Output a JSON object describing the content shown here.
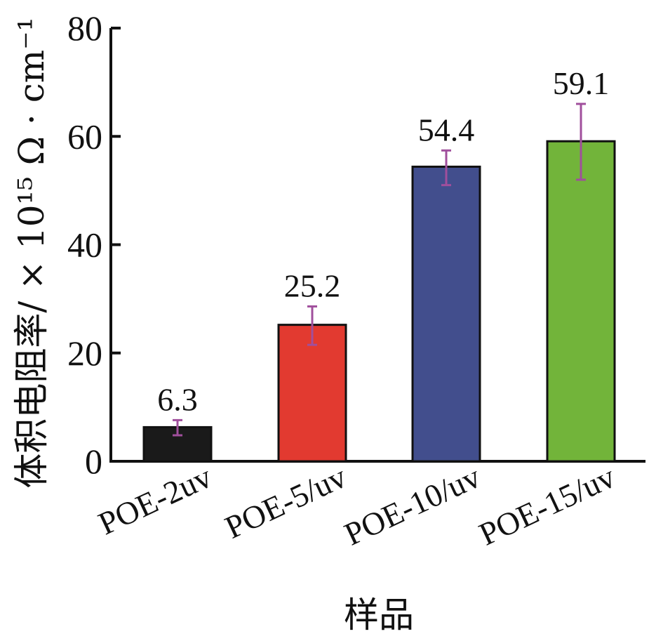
{
  "chart_data": {
    "type": "bar",
    "categories": [
      "POE-2uv",
      "POE-5/uv",
      "POE-10/uv",
      "POE-15/uv"
    ],
    "values": [
      6.3,
      25.2,
      54.4,
      59.1
    ],
    "value_labels": [
      "6.3",
      "25.2",
      "54.4",
      "59.1"
    ],
    "error_low": [
      4.8,
      21.5,
      51.0,
      52.0
    ],
    "error_high": [
      7.6,
      28.6,
      57.4,
      66.0
    ],
    "bar_colors": [
      "#1a1a1a",
      "#e23a30",
      "#424e8d",
      "#72b43a"
    ],
    "error_bar_color": "#a04f9c",
    "xlabel": "样品",
    "ylabel": "体积电阻率/ × 10¹⁵ Ω · cm⁻¹",
    "ylim": [
      0,
      80
    ],
    "yticks": [
      0,
      20,
      40,
      60,
      80
    ],
    "grid": false,
    "legend": "none"
  }
}
